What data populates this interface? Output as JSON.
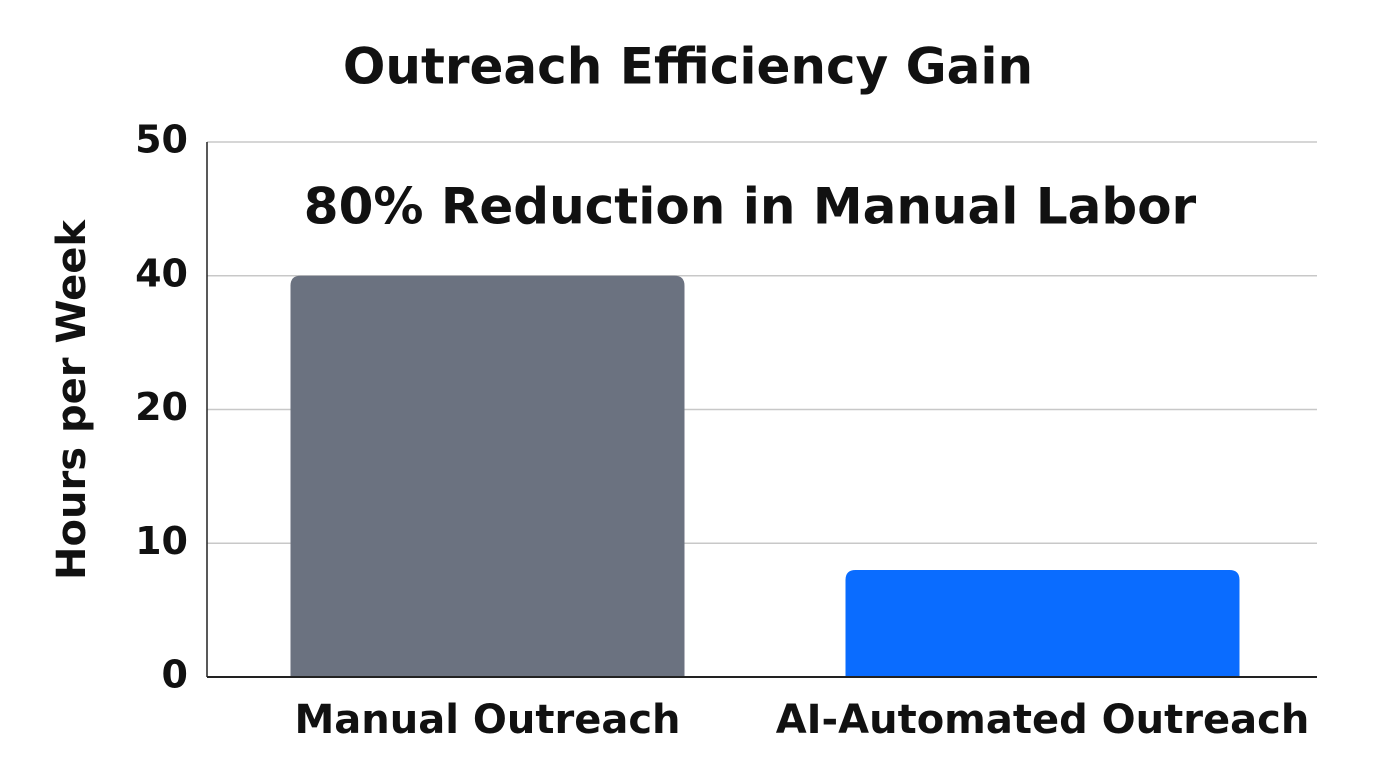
{
  "chart_data": {
    "type": "bar",
    "title": "Outreach Efficiency Gain",
    "annotation": "80% Reduction in Manual Labor",
    "y_label": "Hours per Week",
    "categories": [
      "Manual Outreach",
      "AI-Automated Outreach"
    ],
    "values": [
      40,
      8
    ],
    "colors": [
      "#6b7280",
      "#0a6cff"
    ],
    "ylim": [
      0,
      50
    ],
    "yticks": [
      0,
      10,
      20,
      40,
      50
    ],
    "grid": true
  }
}
